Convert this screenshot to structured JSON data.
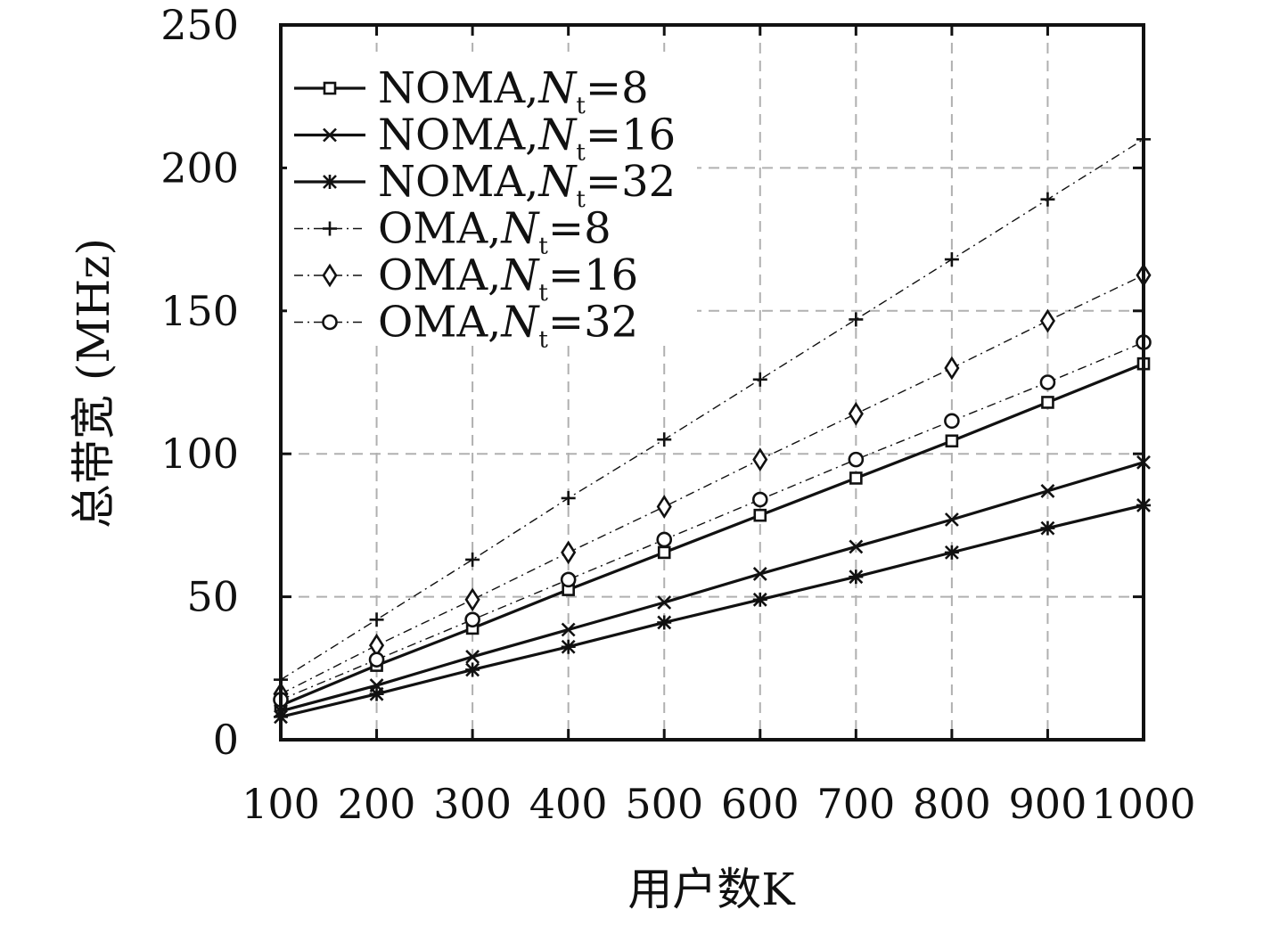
{
  "chart_data": {
    "type": "line",
    "xlabel": "用户数K",
    "ylabel": "总带宽 (MHz)",
    "x": [
      100,
      200,
      300,
      400,
      500,
      600,
      700,
      800,
      900,
      1000
    ],
    "xlim": [
      100,
      1000
    ],
    "ylim": [
      0,
      250
    ],
    "yticks": [
      0,
      50,
      100,
      150,
      200,
      250
    ],
    "grid": true,
    "legend_position": "top-left",
    "series": [
      {
        "name": "NOMA,Nt=8",
        "name_main": "NOMA,",
        "name_var": "N",
        "name_sub": "t",
        "name_tail": "=8",
        "values": [
          12,
          26,
          39,
          52.5,
          65.5,
          78.5,
          91.5,
          104.5,
          118,
          131.5
        ],
        "marker": "square",
        "line": "solid"
      },
      {
        "name": "NOMA,Nt=16",
        "name_main": "NOMA,",
        "name_var": "N",
        "name_sub": "t",
        "name_tail": "=16",
        "values": [
          10,
          19,
          29,
          38.5,
          48,
          58,
          67.5,
          77,
          87,
          97
        ],
        "marker": "x",
        "line": "solid"
      },
      {
        "name": "NOMA,Nt=32",
        "name_main": "NOMA,",
        "name_var": "N",
        "name_sub": "t",
        "name_tail": "=32",
        "values": [
          8,
          16,
          24.5,
          32.5,
          41,
          49,
          57,
          65.5,
          74,
          82
        ],
        "marker": "asterisk",
        "line": "solid"
      },
      {
        "name": "OMA,Nt=8",
        "name_main": "OMA,",
        "name_var": "N",
        "name_sub": "t",
        "name_tail": "=8",
        "values": [
          21,
          42,
          63,
          84.5,
          105,
          126,
          147,
          168,
          189,
          210
        ],
        "marker": "plus",
        "line": "dashdot"
      },
      {
        "name": "OMA,Nt=16",
        "name_main": "OMA,",
        "name_var": "N",
        "name_sub": "t",
        "name_tail": "=16",
        "values": [
          16,
          33,
          49,
          65.5,
          81.5,
          98,
          114,
          130,
          146.5,
          162.5
        ],
        "marker": "diamond",
        "line": "dashdot"
      },
      {
        "name": "OMA,Nt=32",
        "name_main": "OMA,",
        "name_var": "N",
        "name_sub": "t",
        "name_tail": "=32",
        "values": [
          14,
          28,
          42,
          56,
          70,
          84,
          98,
          111.5,
          125,
          139
        ],
        "marker": "circle",
        "line": "dashdot"
      }
    ]
  }
}
